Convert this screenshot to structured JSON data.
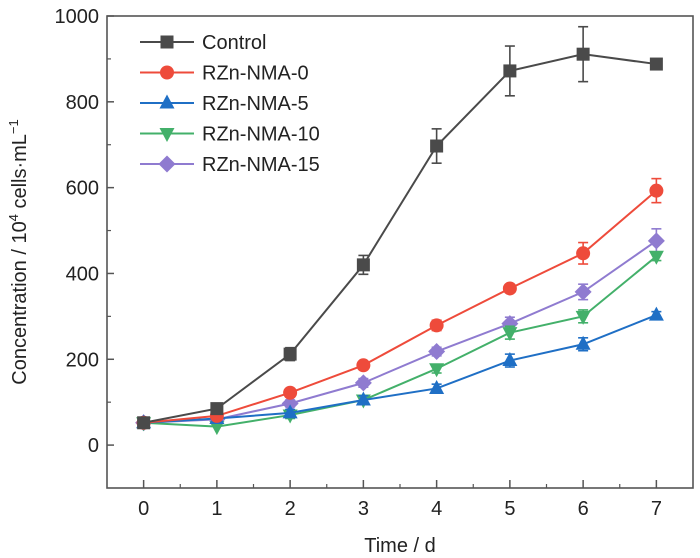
{
  "chart_data": {
    "type": "line",
    "title": "",
    "xlabel": "Time / d",
    "ylabel": "Concentration / 10^4 cells·mL^-1",
    "ylabel_parts": {
      "main": "Concentration / 10",
      "exp1": "4",
      "mid": " cells·mL",
      "exp2": "−1"
    },
    "x": [
      0,
      1,
      2,
      3,
      4,
      5,
      6,
      7
    ],
    "xlim": [
      -0.5,
      7.5
    ],
    "ylim": [
      -100,
      1000
    ],
    "xticks": [
      0,
      1,
      2,
      3,
      4,
      5,
      6,
      7
    ],
    "yticks": [
      0,
      200,
      400,
      600,
      800,
      1000
    ],
    "grid": false,
    "legend_position": "top-left",
    "series": [
      {
        "name": "Control",
        "marker": "square",
        "color": "#4a4a4a",
        "values": [
          52,
          85,
          212,
          420,
          697,
          872,
          911,
          888
        ],
        "errors": [
          5,
          5,
          15,
          22,
          40,
          58,
          64,
          10
        ]
      },
      {
        "name": "RZn-NMA-0",
        "marker": "circle",
        "color": "#ee4b3b",
        "values": [
          52,
          68,
          122,
          186,
          279,
          365,
          447,
          593
        ],
        "errors": [
          5,
          5,
          6,
          8,
          12,
          8,
          25,
          28
        ]
      },
      {
        "name": "RZn-NMA-5",
        "marker": "triangle-up",
        "color": "#1f6fc5",
        "values": [
          52,
          62,
          75,
          105,
          132,
          197,
          235,
          303
        ],
        "errors": [
          5,
          5,
          8,
          10,
          10,
          15,
          15,
          8
        ]
      },
      {
        "name": "RZn-NMA-10",
        "marker": "triangle-down",
        "color": "#43b06a",
        "values": [
          52,
          43,
          70,
          105,
          178,
          262,
          300,
          440
        ],
        "errors": [
          5,
          5,
          8,
          10,
          10,
          15,
          15,
          10
        ]
      },
      {
        "name": "RZn-NMA-15",
        "marker": "diamond",
        "color": "#8f7bd0",
        "values": [
          52,
          60,
          97,
          145,
          218,
          283,
          357,
          476
        ],
        "errors": [
          5,
          5,
          8,
          10,
          10,
          15,
          18,
          28
        ]
      }
    ]
  }
}
